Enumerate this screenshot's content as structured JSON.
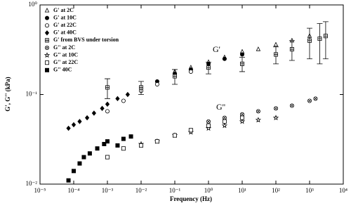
{
  "chart_data": {
    "type": "scatter",
    "log_x": true,
    "log_y": true,
    "x_label": "Frequency (Hz)",
    "y_label": "G', G'' (kPa)",
    "annotations": [
      "G'",
      "G''"
    ],
    "xlim": [
      1e-05,
      10000
    ],
    "ylim": [
      0.01,
      1
    ],
    "xticks": [
      {
        "value": 1e-05,
        "label": "10⁻⁵"
      },
      {
        "value": 0.0001,
        "label": "10⁻⁴"
      },
      {
        "value": 0.001,
        "label": "10⁻³"
      },
      {
        "value": 0.01,
        "label": "10⁻²"
      },
      {
        "value": 0.1,
        "label": "10⁻¹"
      },
      {
        "value": 1,
        "label": "10⁰"
      },
      {
        "value": 10,
        "label": "10¹"
      },
      {
        "value": 100,
        "label": "10²"
      },
      {
        "value": 1000,
        "label": "10³"
      },
      {
        "value": 10000,
        "label": "10⁴"
      }
    ],
    "yticks": [
      {
        "value": 0.01,
        "label": "10⁻²"
      },
      {
        "value": 0.1,
        "label": "10⁻¹"
      },
      {
        "value": 1,
        "label": "10⁰"
      }
    ],
    "series": [
      {
        "name": "G' at 2C",
        "color": "#000000",
        "marker": "triangle-open",
        "x": [
          0.1,
          0.3,
          1,
          3,
          10,
          30,
          100,
          300,
          1000
        ],
        "values": [
          0.18,
          0.2,
          0.23,
          0.26,
          0.3,
          0.32,
          0.36,
          0.4,
          0.45
        ]
      },
      {
        "name": "G' at 10C",
        "color": "#000000",
        "marker": "circle-filled",
        "x": [
          0.01,
          0.03,
          0.1,
          0.3,
          1,
          3,
          10
        ],
        "values": [
          0.12,
          0.14,
          0.17,
          0.19,
          0.22,
          0.25,
          0.28
        ]
      },
      {
        "name": "G' at 22C",
        "color": "#000000",
        "marker": "circle-open",
        "x": [
          0.001,
          0.003,
          0.01,
          0.03,
          0.1,
          0.3
        ],
        "values": [
          0.065,
          0.085,
          0.11,
          0.13,
          0.16,
          0.18
        ]
      },
      {
        "name": "G' at 40C",
        "color": "#000000",
        "marker": "diamond-filled",
        "x": [
          7e-05,
          0.0001,
          0.00015,
          0.00025,
          0.0004,
          0.0007,
          0.001,
          0.002,
          0.004
        ],
        "values": [
          0.042,
          0.046,
          0.05,
          0.055,
          0.062,
          0.07,
          0.078,
          0.09,
          0.1
        ]
      },
      {
        "name": "G' from BVS under torsion",
        "color": "#000000",
        "marker": "square-plus",
        "x": [
          0.001,
          0.01,
          0.1,
          1,
          10,
          100,
          300,
          1000,
          2000,
          3000
        ],
        "values": [
          0.12,
          0.12,
          0.16,
          0.2,
          0.22,
          0.28,
          0.32,
          0.4,
          0.42,
          0.45
        ],
        "errors": [
          0.03,
          0.02,
          0.03,
          0.03,
          0.04,
          0.06,
          0.08,
          0.15,
          0.2,
          0.2
        ]
      },
      {
        "name": "G\" at 2C",
        "color": "#000000",
        "marker": "circle-cross",
        "x": [
          1,
          3,
          10,
          30,
          100,
          300,
          1000,
          1500
        ],
        "values": [
          0.05,
          0.055,
          0.06,
          0.065,
          0.07,
          0.075,
          0.085,
          0.09
        ]
      },
      {
        "name": "G\" at 10C",
        "color": "#000000",
        "marker": "star",
        "x": [
          0.01,
          0.03,
          0.1,
          0.3,
          1,
          3,
          10,
          30,
          100
        ],
        "values": [
          0.028,
          0.03,
          0.035,
          0.038,
          0.042,
          0.045,
          0.05,
          0.052,
          0.055
        ]
      },
      {
        "name": "G\" at 22C",
        "color": "#000000",
        "marker": "square-open",
        "x": [
          0.001,
          0.003,
          0.01,
          0.03,
          0.1,
          0.3,
          1,
          3,
          10
        ],
        "values": [
          0.02,
          0.025,
          0.027,
          0.03,
          0.035,
          0.04,
          0.045,
          0.05,
          0.055
        ]
      },
      {
        "name": "G\" 40C",
        "color": "#000000",
        "marker": "square-filled",
        "x": [
          7e-05,
          0.0001,
          0.00015,
          0.0002,
          0.0003,
          0.0005,
          0.0008,
          0.001,
          0.002,
          0.003,
          0.005
        ],
        "values": [
          0.011,
          0.014,
          0.017,
          0.02,
          0.022,
          0.025,
          0.028,
          0.03,
          0.027,
          0.032,
          0.034
        ]
      }
    ]
  }
}
